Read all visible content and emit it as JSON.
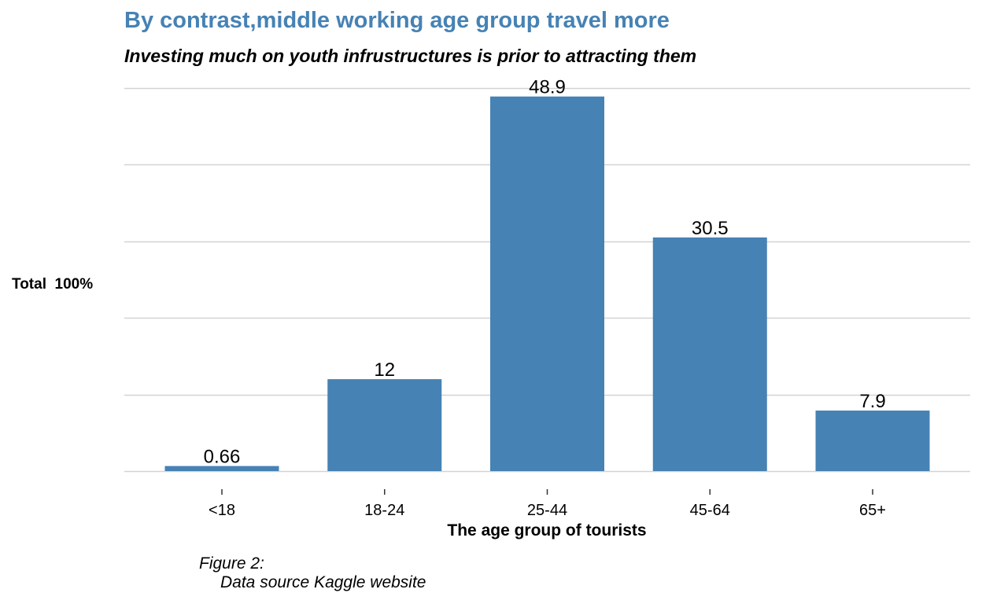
{
  "chart_data": {
    "type": "bar",
    "title": "By contrast,middle working age group travel more",
    "subtitle": "Investing much on youth infrustructures is prior to attracting them",
    "xlabel": "The age group of tourists",
    "ylabel": "Total  100%",
    "categories": [
      "<18",
      "18-24",
      "25-44",
      "45-64",
      "65+"
    ],
    "values": [
      0.66,
      12,
      48.9,
      30.5,
      7.9
    ],
    "value_labels": [
      "0.66",
      "12",
      "48.9",
      "30.5",
      "7.9"
    ],
    "ylim": [
      0,
      50
    ],
    "grid": true,
    "bar_color": "#4682b4",
    "grid_color": "#d3d3d3"
  },
  "caption": {
    "line1": "Figure 2:",
    "line2": "Data source Kaggle website"
  }
}
